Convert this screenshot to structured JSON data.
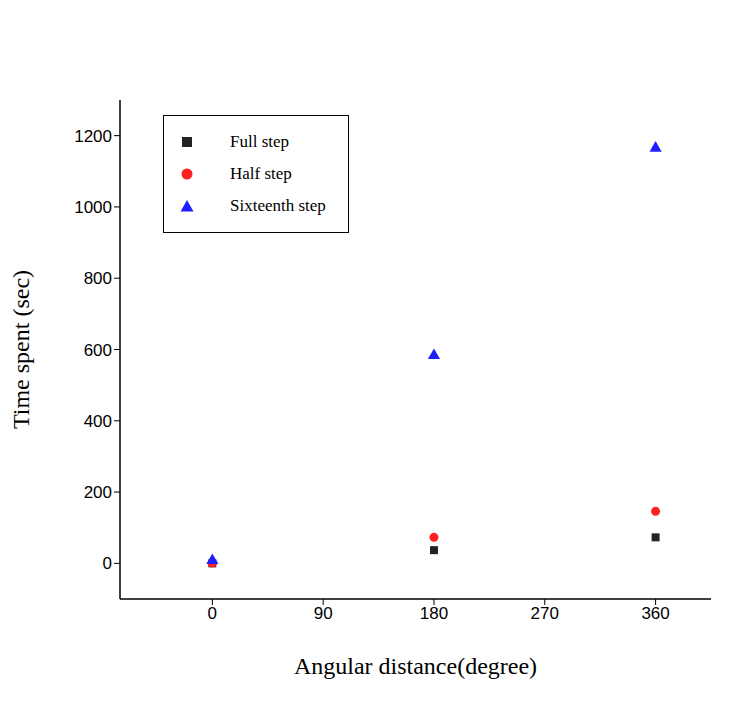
{
  "chart_data": {
    "type": "scatter",
    "x_label": "Angular distance(degree)",
    "y_label": "Time spent (sec)",
    "x": [
      0,
      180,
      360
    ],
    "series": [
      {
        "name": "Full step",
        "color": "#222222",
        "marker": "square",
        "values": [
          0,
          37,
          73
        ]
      },
      {
        "name": "Half step",
        "color": "#ff2020",
        "marker": "circle",
        "values": [
          1,
          73,
          146
        ]
      },
      {
        "name": "Sixteenth step",
        "color": "#2020ff",
        "marker": "triangle",
        "values": [
          8,
          583,
          1165
        ]
      }
    ],
    "xlim": [
      -75,
      405
    ],
    "xticks": [
      0,
      90,
      180,
      270,
      360
    ],
    "ylim": [
      -100,
      1300
    ],
    "yticks": [
      0,
      200,
      400,
      600,
      800,
      1000,
      1200
    ],
    "grid": false,
    "legend": "upper left"
  }
}
